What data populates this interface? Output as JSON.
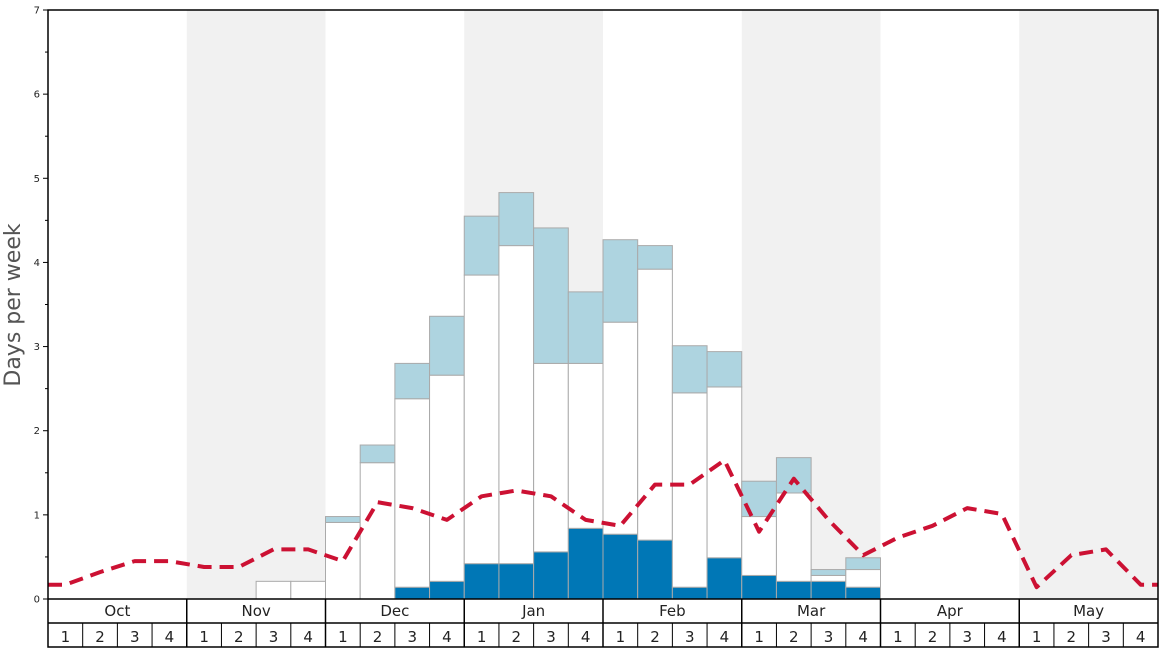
{
  "chart_data": {
    "type": "bar",
    "ylabel": "Days per week",
    "ylim": [
      0,
      7
    ],
    "y_ticks": [
      "0",
      "1",
      "2",
      "3",
      "4",
      "5",
      "6",
      "7"
    ],
    "months": [
      "Oct",
      "Nov",
      "Dec",
      "Jan",
      "Feb",
      "Mar",
      "Apr",
      "May"
    ],
    "weeks_per_month": [
      "1",
      "2",
      "3",
      "4"
    ],
    "categories": [
      "Oct 1",
      "Oct 2",
      "Oct 3",
      "Oct 4",
      "Nov 1",
      "Nov 2",
      "Nov 3",
      "Nov 4",
      "Dec 1",
      "Dec 2",
      "Dec 3",
      "Dec 4",
      "Jan 1",
      "Jan 2",
      "Jan 3",
      "Jan 4",
      "Feb 1",
      "Feb 2",
      "Feb 3",
      "Feb 4",
      "Mar 1",
      "Mar 2",
      "Mar 3",
      "Mar 4",
      "Apr 1",
      "Apr 2",
      "Apr 3",
      "Apr 4",
      "May 1",
      "May 2",
      "May 3",
      "May 4"
    ],
    "series": [
      {
        "color": "#0077b6",
        "values": [
          0,
          0,
          0,
          0,
          0,
          0,
          0,
          0,
          0,
          0,
          0.14,
          0.21,
          0.42,
          0.42,
          0.56,
          0.84,
          0.77,
          0.7,
          0.14,
          0.49,
          0.28,
          0.21,
          0.21,
          0.14,
          0,
          0,
          0,
          0,
          0,
          0,
          0,
          0
        ]
      },
      {
        "color": "#ffffff",
        "values": [
          0,
          0,
          0,
          0,
          0,
          0,
          0.21,
          0.21,
          0.91,
          1.62,
          2.24,
          2.45,
          3.43,
          3.78,
          2.24,
          1.96,
          2.52,
          3.22,
          2.31,
          2.03,
          0.7,
          1.05,
          0.07,
          0.21,
          0,
          0,
          0,
          0,
          0,
          0,
          0,
          0
        ]
      },
      {
        "color": "#aed4e0",
        "values": [
          0,
          0,
          0,
          0,
          0,
          0,
          0,
          0,
          0.07,
          0.21,
          0.42,
          0.7,
          0.7,
          0.63,
          1.61,
          0.85,
          0.98,
          0.28,
          0.56,
          0.42,
          0.42,
          0.42,
          0.07,
          0.14,
          0,
          0,
          0,
          0,
          0,
          0,
          0,
          0
        ]
      },
      {
        "color": "#cc1133",
        "style": "dashed",
        "values": [
          0.17,
          0.32,
          0.45,
          0.45,
          0.38,
          0.38,
          0.59,
          0.59,
          0.45,
          1.15,
          1.08,
          0.94,
          1.22,
          1.29,
          1.22,
          0.94,
          0.87,
          1.36,
          1.36,
          1.65,
          0.8,
          1.43,
          0.94,
          0.52,
          0.73,
          0.87,
          1.08,
          1.01,
          0.14,
          0.52,
          0.59,
          0.17
        ]
      }
    ],
    "colors": {
      "band_shade": "#f1f1f1",
      "bar_stroke": "#aaaaaa",
      "axis": "#000000"
    }
  }
}
